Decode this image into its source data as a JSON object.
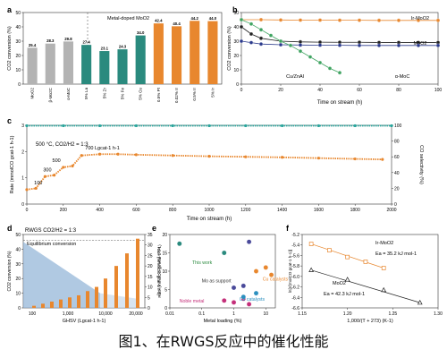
{
  "caption": "图1、在RWGS反应中的催化性能",
  "colors": {
    "grey": "#b3b3b3",
    "teal": "#2a8a7e",
    "orange": "#e8872e",
    "green": "#3ea360",
    "navy": "#2b3a8c",
    "black": "#222222",
    "teal_light": "#2aa59c"
  },
  "chart_data": [
    {
      "panel": "a",
      "type": "bar",
      "ylabel": "CO2 conversion (%)",
      "ylim": [
        0,
        50
      ],
      "yticks": [
        0,
        10,
        20,
        30,
        40,
        50
      ],
      "group_label": "Metal-doped MoO2",
      "categories": [
        "MoO2",
        "β-Mo2C",
        "α-MoC",
        "5% La",
        "5% Zr",
        "5% Fe",
        "5% Cu",
        "0.5% Pt",
        "0.02% Ir",
        "0.5% Ir",
        "5% Ir"
      ],
      "values": [
        25.4,
        28.3,
        29.8,
        27.4,
        23.1,
        24.3,
        34.0,
        42.4,
        40.4,
        44.2,
        44.0
      ],
      "value_labels": [
        "25.4",
        "28.3",
        "29.8",
        "27.4",
        "23.1",
        "24.3",
        "34.0",
        "42.4",
        "40.4",
        "44.2",
        "44.0"
      ],
      "colors": [
        "#b3b3b3",
        "#b3b3b3",
        "#b3b3b3",
        "#2a8a7e",
        "#2a8a7e",
        "#2a8a7e",
        "#2a8a7e",
        "#e8872e",
        "#e8872e",
        "#e8872e",
        "#e8872e"
      ]
    },
    {
      "panel": "b",
      "type": "line",
      "xlabel": "Time on stream (h)",
      "ylabel": "CO2 conversion (%)",
      "xlim": [
        0,
        100
      ],
      "ylim": [
        0,
        50
      ],
      "xticks": [
        0,
        20,
        40,
        60,
        80,
        100
      ],
      "yticks": [
        0,
        10,
        20,
        30,
        40,
        50
      ],
      "series": [
        {
          "name": "Ir-MoO2",
          "x": [
            0,
            10,
            20,
            30,
            40,
            50,
            60,
            70,
            80,
            90,
            100
          ],
          "values": [
            45,
            45,
            44.8,
            44.7,
            44.7,
            44.6,
            44.6,
            44.5,
            44.5,
            44.5,
            44.5
          ]
        },
        {
          "name": "MoO2",
          "x": [
            0,
            5,
            10,
            20,
            30,
            40,
            50,
            60,
            70,
            80,
            90,
            100
          ],
          "values": [
            40,
            35,
            32,
            30,
            29.5,
            29.3,
            29.2,
            29.2,
            29.1,
            29.1,
            29.1,
            29.1
          ]
        },
        {
          "name": "α-MoC",
          "x": [
            0,
            5,
            10,
            20,
            30,
            40,
            50,
            60,
            70,
            80,
            90,
            100
          ],
          "values": [
            30,
            29,
            28,
            27.5,
            27.3,
            27.2,
            27.1,
            27,
            27,
            27,
            27,
            27
          ]
        },
        {
          "name": "Cu/ZnAl",
          "x": [
            0,
            5,
            10,
            15,
            20,
            25,
            30,
            35,
            40,
            45,
            50
          ],
          "values": [
            45,
            42,
            38,
            34,
            30,
            27,
            23,
            19,
            15,
            11,
            8
          ]
        }
      ]
    },
    {
      "panel": "c",
      "type": "scatter",
      "xlabel": "Time on stream (h)",
      "ylabel": "Rate (mmolCO gcat-1 h-1)",
      "ylabel_right": "CO selectivity (%)",
      "xlim": [
        0,
        2000
      ],
      "ylim": [
        0,
        3
      ],
      "ylim_right": [
        0,
        100
      ],
      "xticks": [
        0,
        200,
        400,
        600,
        800,
        1000,
        1200,
        1400,
        1600,
        1800,
        2000
      ],
      "yticks": [
        0,
        1,
        2,
        3
      ],
      "yticks_right": [
        0,
        20,
        40,
        60,
        80,
        100
      ],
      "condition_label": "500 °C, CO2/H2 = 1:3",
      "annotations": [
        "100",
        "300",
        "500",
        "700 Lgcat-1 h-1"
      ],
      "series": [
        {
          "name": "Rate",
          "x": [
            0,
            50,
            100,
            150,
            200,
            250,
            300,
            400,
            500,
            600,
            800,
            1000,
            1200,
            1400,
            1600,
            1800,
            1950
          ],
          "values": [
            0.55,
            0.6,
            1.05,
            1.1,
            1.4,
            1.45,
            1.85,
            1.9,
            1.9,
            1.88,
            1.85,
            1.82,
            1.8,
            1.78,
            1.75,
            1.72,
            1.7
          ]
        },
        {
          "name": "CO selectivity",
          "x": [
            0,
            200,
            400,
            600,
            800,
            1000,
            1200,
            1400,
            1600,
            1800,
            2000
          ],
          "values": [
            99.5,
            99.5,
            99.5,
            99.5,
            99.5,
            99.5,
            99.5,
            99.5,
            99.5,
            99.5,
            99.5
          ]
        }
      ]
    },
    {
      "panel": "d",
      "type": "bar",
      "xlabel": "GHSV (Lgcat-1 h-1)",
      "ylabel": "CO2 conversion (%)",
      "ylabel_right": "Rate (mmolCO gcat-1 h-1)",
      "title": "RWGS   CO2/H2 = 1:3",
      "annotation": "Equilibrium conversion",
      "xticks": [
        "100",
        "1,000",
        "10,000",
        "20,000"
      ],
      "yticks": [
        0,
        10,
        20,
        30,
        40,
        50
      ],
      "yticks_right": [
        0,
        5,
        10,
        15,
        20,
        25,
        30,
        35
      ]
    },
    {
      "panel": "e",
      "type": "scatter",
      "xlabel": "Metal loading (%)",
      "ylabel": "Rate (mmolCO gmetal-1 h-1)",
      "xticks": [
        "0.01",
        "0.1",
        "1",
        "10"
      ],
      "yticks": [
        0,
        5,
        10,
        15,
        20
      ],
      "annotations": [
        "This work",
        "Mo as support",
        "Noble metal",
        "Cu catalysts",
        "Co catalysts"
      ],
      "series": [
        {
          "name": "This work",
          "x": [
            0.02,
            0.5
          ],
          "values": [
            17.5,
            15
          ]
        },
        {
          "name": "Mo as support",
          "x": [
            1,
            2,
            3
          ],
          "values": [
            5.5,
            6,
            18
          ]
        },
        {
          "name": "Noble metal",
          "x": [
            0.5,
            1,
            2,
            3
          ],
          "values": [
            2,
            1.5,
            2.5,
            1
          ]
        },
        {
          "name": "Cu catalysts",
          "x": [
            5,
            10,
            15
          ],
          "values": [
            10,
            11,
            9
          ]
        },
        {
          "name": "Co catalysts",
          "x": [
            2,
            5
          ],
          "values": [
            3,
            4
          ]
        }
      ]
    },
    {
      "panel": "f",
      "type": "scatter",
      "xlabel": "1,000/(T + 273) (K-1)",
      "ylabel": "ln[r/(molCO gcat-1 h-1)]",
      "xlim": [
        1.15,
        1.3
      ],
      "ylim": [
        -6.6,
        -5.2
      ],
      "xticks": [
        1.15,
        1.2,
        1.25,
        1.3
      ],
      "yticks": [
        -5.2,
        -5.4,
        -5.6,
        -5.8,
        -6.0,
        -6.2,
        -6.4,
        -6.6
      ],
      "series": [
        {
          "name": "Ir-MoO2",
          "label": "Ea = 35.2 kJ mol-1",
          "x": [
            1.16,
            1.18,
            1.2,
            1.22,
            1.24
          ],
          "values": [
            -5.38,
            -5.5,
            -5.63,
            -5.72,
            -5.84
          ]
        },
        {
          "name": "MoO2",
          "label": "Ea = 42.3 kJ mol-1",
          "x": [
            1.16,
            1.2,
            1.24,
            1.28
          ],
          "values": [
            -5.88,
            -6.06,
            -6.26,
            -6.5
          ]
        }
      ]
    }
  ]
}
